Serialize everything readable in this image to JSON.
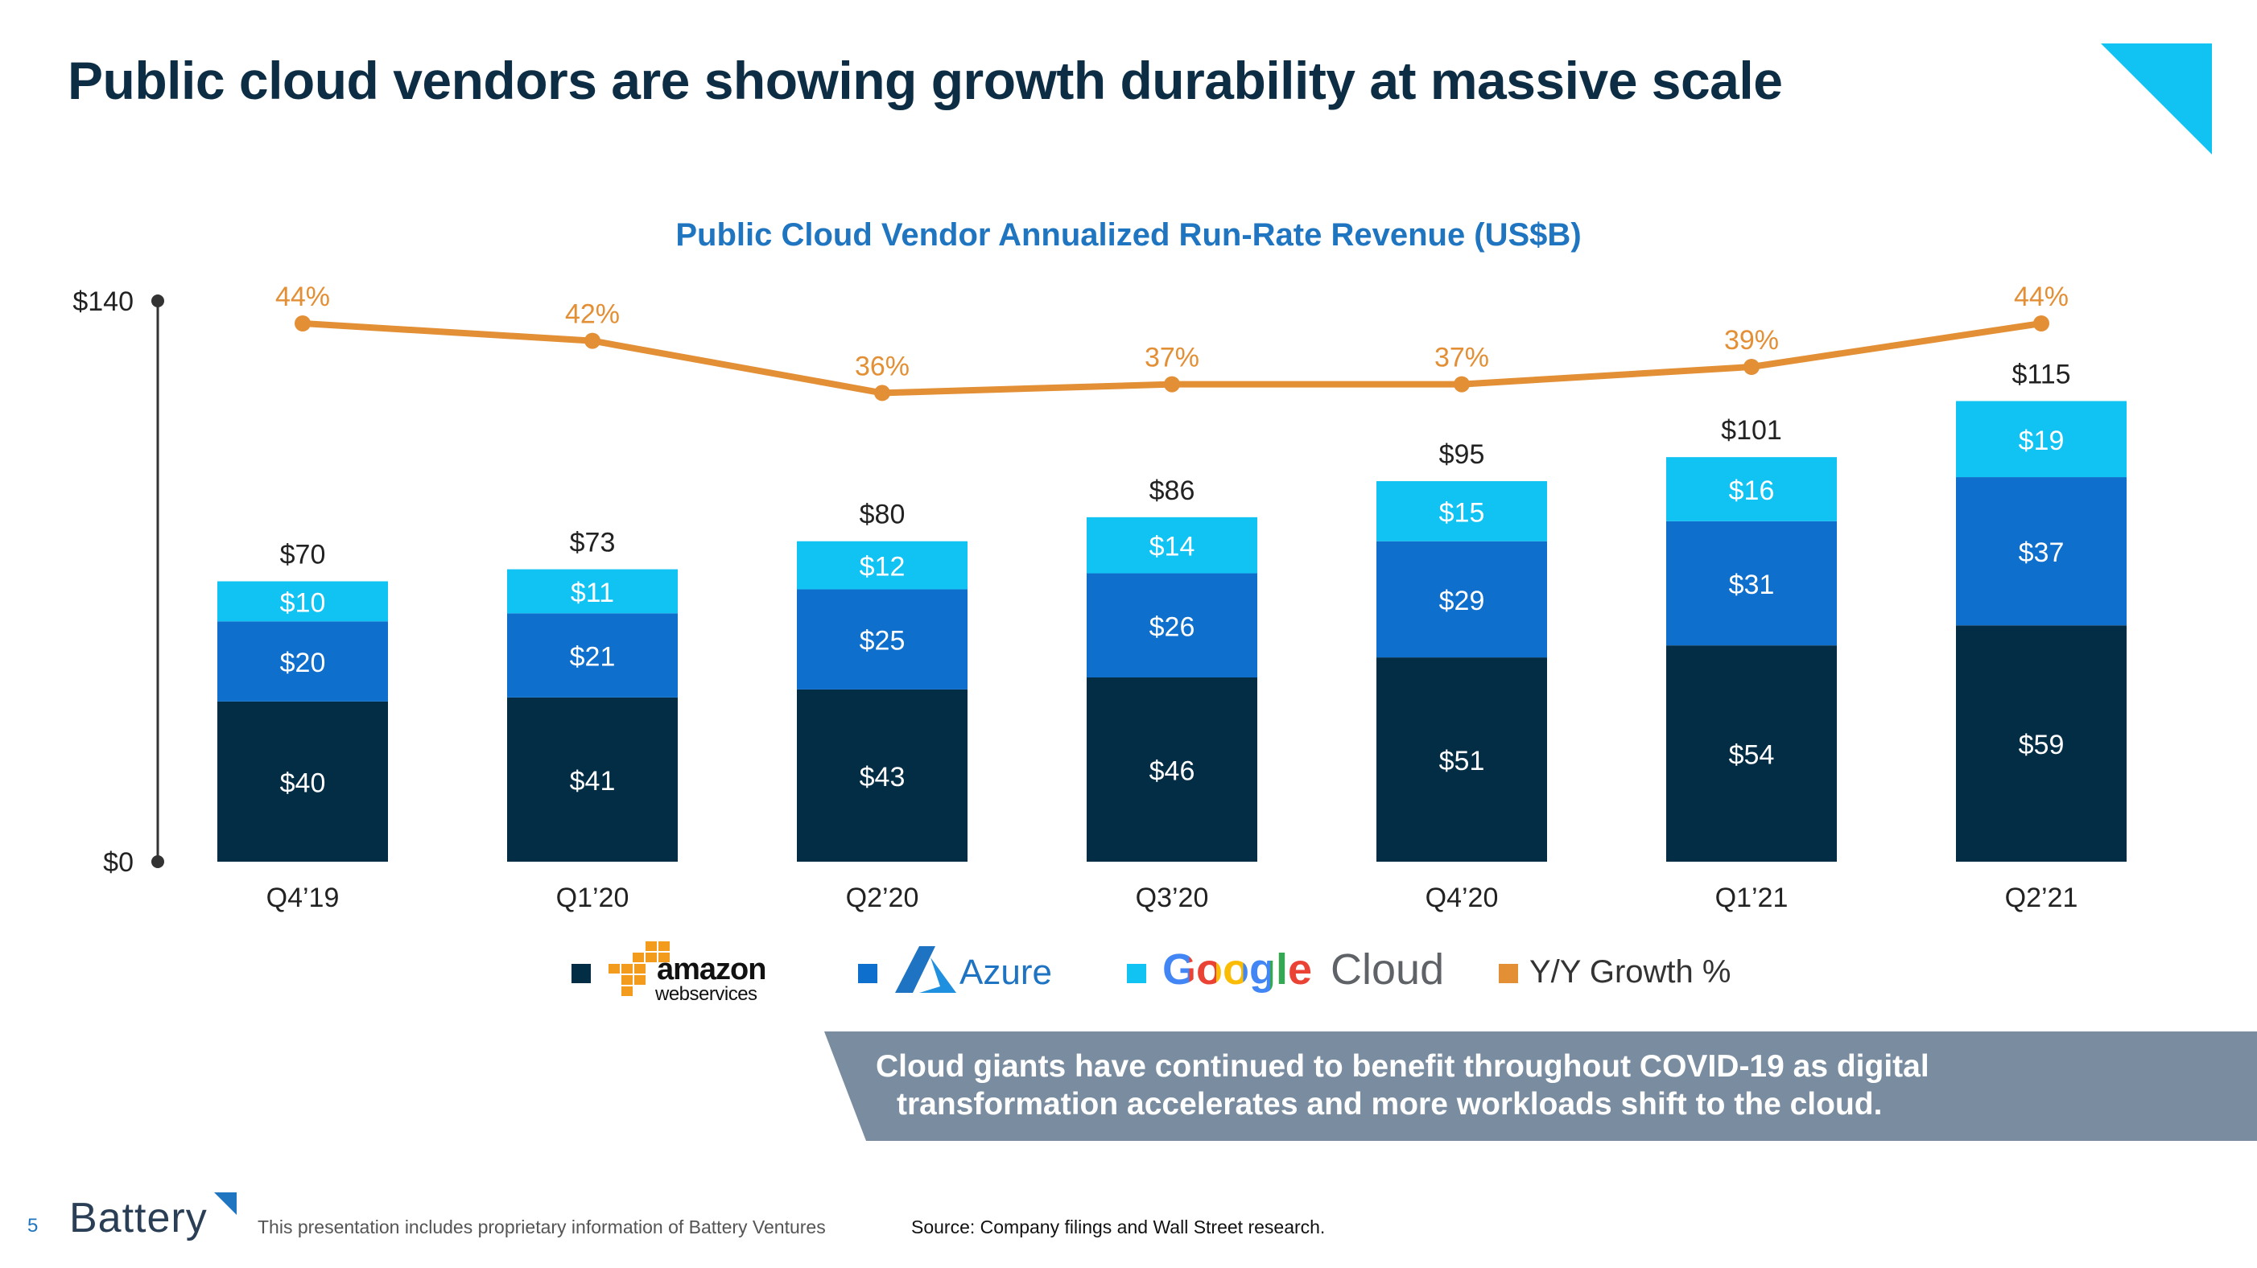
{
  "slide": {
    "title": "Public cloud vendors are showing growth durability at massive scale",
    "page_number": "5",
    "brand": "Battery",
    "disclaimer": "This presentation includes proprietary information of Battery Ventures",
    "source": "Source: Company filings and Wall Street research.",
    "callout_line1": "Cloud giants have continued to benefit throughout COVID-19 as digital",
    "callout_line2": "transformation accelerates and more workloads shift to the cloud."
  },
  "colors": {
    "aws": "#032d45",
    "azure": "#0f6fcc",
    "google": "#11c3f3",
    "growth": "#e38f35",
    "callout": "#7a8da0",
    "accent": "#11c3f3"
  },
  "legend": {
    "aws_line1": "amazon",
    "aws_line2": "webservices",
    "azure": "Azure",
    "google_word": "Google",
    "google_cloud": "Cloud",
    "growth": "Y/Y Growth %"
  },
  "chart_data": {
    "type": "bar",
    "stacked": true,
    "title": "Public Cloud Vendor Annualized Run-Rate Revenue (US$B)",
    "categories": [
      "Q4’19",
      "Q1’20",
      "Q2’20",
      "Q3’20",
      "Q4’20",
      "Q1’21",
      "Q2’21"
    ],
    "series": [
      {
        "name": "AWS",
        "values": [
          40,
          41,
          43,
          46,
          51,
          54,
          59
        ],
        "labels": [
          "$40",
          "$41",
          "$43",
          "$46",
          "$51",
          "$54",
          "$59"
        ]
      },
      {
        "name": "Azure",
        "values": [
          20,
          21,
          25,
          26,
          29,
          31,
          37
        ],
        "labels": [
          "$20",
          "$21",
          "$25",
          "$26",
          "$29",
          "$31",
          "$37"
        ]
      },
      {
        "name": "Google Cloud",
        "values": [
          10,
          11,
          12,
          14,
          15,
          16,
          19
        ],
        "labels": [
          "$10",
          "$11",
          "$12",
          "$14",
          "$15",
          "$16",
          "$19"
        ]
      }
    ],
    "totals": [
      70,
      73,
      80,
      86,
      95,
      101,
      115
    ],
    "total_labels": [
      "$70",
      "$73",
      "$80",
      "$86",
      "$95",
      "$101",
      "$115"
    ],
    "growth_series": {
      "name": "Y/Y Growth %",
      "values": [
        44,
        42,
        36,
        37,
        37,
        39,
        44
      ],
      "labels": [
        "44%",
        "42%",
        "36%",
        "37%",
        "37%",
        "39%",
        "44%"
      ]
    },
    "ylim": [
      0,
      140
    ],
    "ytick_labels": [
      "$0",
      "$140"
    ],
    "legend_position": "bottom",
    "grid": false
  }
}
